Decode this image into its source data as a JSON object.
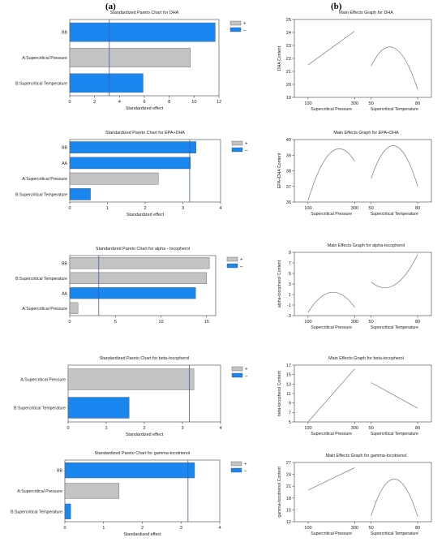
{
  "panels": {
    "left": "(a)",
    "right": "(b)"
  },
  "legend_symbols": {
    "plus": "+",
    "minus": "–"
  },
  "colors": {
    "positive": "#c4c4c4",
    "negative": "#1a86f0",
    "curve": "#8a8a8a",
    "refline": "#3a5ab8"
  },
  "chart_data": [
    {
      "type": "bar",
      "orientation": "horizontal",
      "panel": "a",
      "title": "Standardized Pareto Chart for DHA",
      "xlabel": "Standardized effect",
      "categories": [
        "BB",
        "A:Supercritical Pressure",
        "B:Supercritical Temperature"
      ],
      "values": [
        11.7,
        9.7,
        5.9
      ],
      "signs": [
        "-",
        "+",
        "-"
      ],
      "xlim": [
        0,
        12
      ],
      "xticks": [
        0,
        2,
        4,
        6,
        8,
        10,
        12
      ],
      "threshold": 3.18,
      "legend": [
        "+",
        "–"
      ]
    },
    {
      "type": "bar",
      "orientation": "horizontal",
      "panel": "a",
      "title": "Standardized Pareto Chart for EPA+DHA",
      "xlabel": "Standardized effect",
      "categories": [
        "BB",
        "AA",
        "A:Supercritical Pressure",
        "B:Supercritical Temperature"
      ],
      "values": [
        3.35,
        3.2,
        2.35,
        0.55
      ],
      "signs": [
        "-",
        "-",
        "+",
        "-"
      ],
      "xlim": [
        0,
        4
      ],
      "xticks": [
        0,
        1,
        2,
        3,
        4
      ],
      "threshold": 3.18,
      "legend": [
        "+",
        "–"
      ]
    },
    {
      "type": "bar",
      "orientation": "horizontal",
      "panel": "a",
      "title": "Standardized Pareto Chart for alpha - tocopherol",
      "xlabel": "",
      "categories": [
        "BB",
        "B:Supercritical Temperature",
        "AA",
        "A:Supercritical Pressure"
      ],
      "values": [
        15.3,
        15.0,
        13.8,
        0.9
      ],
      "signs": [
        "+",
        "+",
        "-",
        "+"
      ],
      "xlim": [
        0,
        16
      ],
      "xticks": [
        0,
        5,
        10,
        15
      ],
      "threshold": 3.18,
      "legend": [
        "+",
        "–"
      ]
    },
    {
      "type": "bar",
      "orientation": "horizontal",
      "panel": "a",
      "title": "Standardized Pareto Chart for beta-tocopherol",
      "xlabel": "Standardized effect",
      "categories": [
        "A:Supercritical Pressure",
        "B:Supercritical Temperature"
      ],
      "values": [
        3.3,
        1.6
      ],
      "signs": [
        "+",
        "-"
      ],
      "xlim": [
        0,
        4
      ],
      "xticks": [
        0,
        1,
        2,
        3,
        4
      ],
      "threshold": 3.18,
      "legend": [
        "+",
        "–"
      ]
    },
    {
      "type": "bar",
      "orientation": "horizontal",
      "panel": "a",
      "title": "Standardized Pareto Chart for gamma-tocotrienol",
      "xlabel": "Standardized effect",
      "categories": [
        "BB",
        "A:Supercritical Pressure",
        "B:Supercritical Temperature"
      ],
      "values": [
        3.35,
        1.4,
        0.15
      ],
      "signs": [
        "-",
        "+",
        "-"
      ],
      "xlim": [
        0,
        4
      ],
      "xticks": [
        0,
        1,
        2,
        3,
        4
      ],
      "threshold": 3.18,
      "legend": [
        "+",
        "–"
      ]
    },
    {
      "type": "line",
      "panel": "b",
      "title": "Main Effects Graph for DHA",
      "ylabel": "DHA Content",
      "ylim": [
        19,
        25
      ],
      "yticks": [
        19,
        20,
        21,
        22,
        23,
        24,
        25
      ],
      "factors": [
        {
          "name": "Supercritical Pressure",
          "ticks": [
            100,
            300
          ],
          "x": [
            100,
            300
          ],
          "shape": "linear",
          "y_low": 21.5,
          "y_high": 24.1,
          "y_mid": 22.8
        },
        {
          "name": "Supercritical Temperature",
          "ticks": [
            50,
            80
          ],
          "x": [
            50,
            80
          ],
          "shape": "quadratic",
          "y_low": 21.4,
          "y_high": 19.6,
          "y_mid": 22.8
        }
      ]
    },
    {
      "type": "line",
      "panel": "b",
      "title": "Main Effects Graph for EPA+DHA",
      "ylabel": "EPA+DHA Content",
      "ylim": [
        36,
        40
      ],
      "yticks": [
        36,
        37,
        38,
        39,
        40
      ],
      "factors": [
        {
          "name": "Supercritical Pressure",
          "ticks": [
            100,
            300
          ],
          "x": [
            100,
            300
          ],
          "shape": "quadratic",
          "y_low": 36.1,
          "y_high": 38.6,
          "y_mid": 39.2
        },
        {
          "name": "Supercritical Temperature",
          "ticks": [
            50,
            80
          ],
          "x": [
            50,
            80
          ],
          "shape": "quadratic",
          "y_low": 37.5,
          "y_high": 37.0,
          "y_mid": 39.6
        }
      ]
    },
    {
      "type": "line",
      "panel": "b",
      "title": "Main Effects Graph for alpha-tocopherol",
      "ylabel": "alpha-tocopherol Content",
      "ylim": [
        -3,
        9
      ],
      "yticks": [
        -3,
        -1,
        1,
        3,
        5,
        7,
        9
      ],
      "factors": [
        {
          "name": "Supercritical Pressure",
          "ticks": [
            100,
            300
          ],
          "x": [
            100,
            300
          ],
          "shape": "quadratic",
          "y_low": -2.4,
          "y_high": -1.4,
          "y_mid": 1.4
        },
        {
          "name": "Supercritical Temperature",
          "ticks": [
            50,
            80
          ],
          "x": [
            50,
            80
          ],
          "shape": "quadratic",
          "y_low": 3.4,
          "y_high": 8.6,
          "y_mid": 2.8
        }
      ]
    },
    {
      "type": "line",
      "panel": "b",
      "title": "Main Effects Graph for beta-tocopherol",
      "ylabel": "beta-tocopherol Content",
      "ylim": [
        5,
        17
      ],
      "yticks": [
        5,
        7,
        9,
        11,
        13,
        15,
        17
      ],
      "factors": [
        {
          "name": "Supercritical Pressure",
          "ticks": [
            100,
            300
          ],
          "x": [
            100,
            300
          ],
          "shape": "linear",
          "y_low": 5.0,
          "y_high": 16.2,
          "y_mid": 10.6
        },
        {
          "name": "Supercritical Temperature",
          "ticks": [
            50,
            80
          ],
          "x": [
            50,
            80
          ],
          "shape": "linear",
          "y_low": 13.3,
          "y_high": 7.9,
          "y_mid": 10.6
        }
      ]
    },
    {
      "type": "line",
      "panel": "b",
      "title": "Main Effects Graph for gamma-tocotrienol",
      "ylabel": "gamma-tocotrienol Content",
      "ylim": [
        12,
        27
      ],
      "yticks": [
        12,
        15,
        18,
        21,
        24,
        27
      ],
      "factors": [
        {
          "name": "Supercritical Pressure",
          "ticks": [
            100,
            300
          ],
          "x": [
            100,
            300
          ],
          "shape": "linear",
          "y_low": 20.0,
          "y_high": 25.7,
          "y_mid": 22.8
        },
        {
          "name": "Supercritical Temperature",
          "ticks": [
            50,
            80
          ],
          "x": [
            50,
            80
          ],
          "shape": "quadratic",
          "y_low": 13.5,
          "y_high": 13.3,
          "y_mid": 22.8
        }
      ]
    }
  ]
}
